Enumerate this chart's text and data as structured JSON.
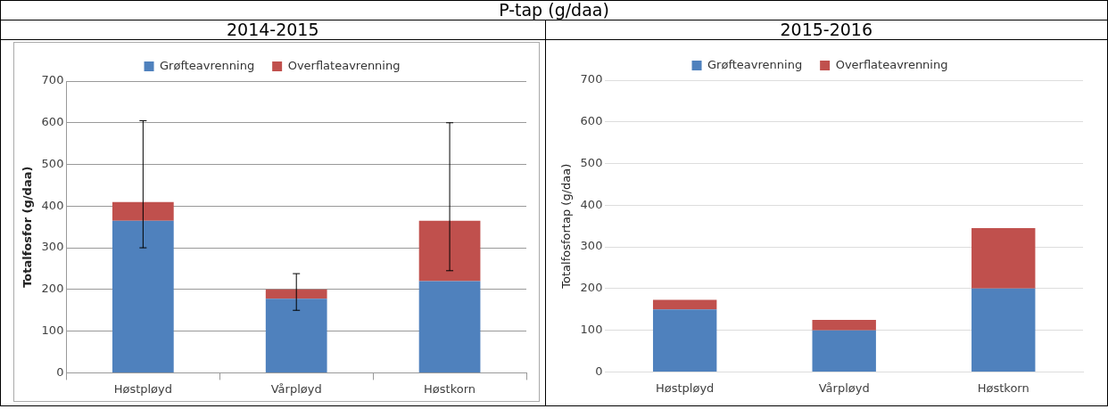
{
  "chart_data": [
    {
      "type": "bar",
      "title": "P-tap (g/daa)",
      "subtitle": "2014-2015",
      "ylabel": "Totalfosfor (g/daa)",
      "categories": [
        "Høstpløyd",
        "Vårpløyd",
        "Høstkorn"
      ],
      "stacked": true,
      "ylim": [
        0,
        700
      ],
      "yticks": [
        0,
        100,
        200,
        300,
        400,
        500,
        600,
        700
      ],
      "grid": "y",
      "legend": "top",
      "series": [
        {
          "name": "Grøfteavrenning",
          "color": "#4f81bd",
          "values": [
            365,
            178,
            220
          ]
        },
        {
          "name": "Overflateavrenning",
          "color": "#c0504d",
          "values": [
            45,
            22,
            145
          ],
          "errors": [
            [
              300,
              605
            ],
            [
              150,
              238
            ],
            [
              245,
              600
            ]
          ]
        }
      ]
    },
    {
      "type": "bar",
      "subtitle": "2015-2016",
      "ylabel": "Totalfosfortap (g/daa)",
      "categories": [
        "Høstpløyd",
        "Vårpløyd",
        "Høstkorn"
      ],
      "stacked": true,
      "ylim": [
        0,
        700
      ],
      "yticks": [
        0,
        100,
        200,
        300,
        400,
        500,
        600,
        700
      ],
      "grid": "y",
      "legend": "top",
      "series": [
        {
          "name": "Grøfteavrenning",
          "color": "#4f81bd",
          "values": [
            150,
            100,
            200
          ]
        },
        {
          "name": "Overflateavrenning",
          "color": "#c0504d",
          "values": [
            23,
            25,
            145
          ]
        }
      ]
    }
  ]
}
